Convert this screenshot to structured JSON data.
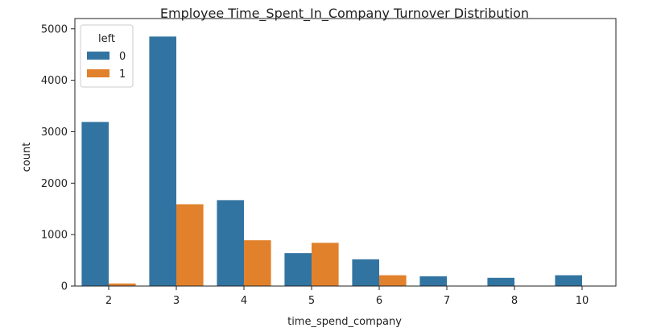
{
  "chart_data": {
    "type": "bar",
    "title": "Employee Time_Spent_In_Company Turnover Distribution",
    "xlabel": "time_spend_company",
    "ylabel": "count",
    "categories": [
      "2",
      "3",
      "4",
      "5",
      "6",
      "7",
      "8",
      "10"
    ],
    "series": [
      {
        "name": "0",
        "color": "#3274a1",
        "values": [
          3190,
          4850,
          1670,
          640,
          520,
          190,
          160,
          210
        ]
      },
      {
        "name": "1",
        "color": "#e1812c",
        "values": [
          50,
          1590,
          890,
          840,
          210,
          0,
          0,
          0
        ]
      }
    ],
    "ylim": [
      0,
      5200
    ],
    "yticks": [
      0,
      1000,
      2000,
      3000,
      4000,
      5000
    ],
    "legend": {
      "title": "left",
      "placement": "top-left"
    },
    "grid": false
  }
}
